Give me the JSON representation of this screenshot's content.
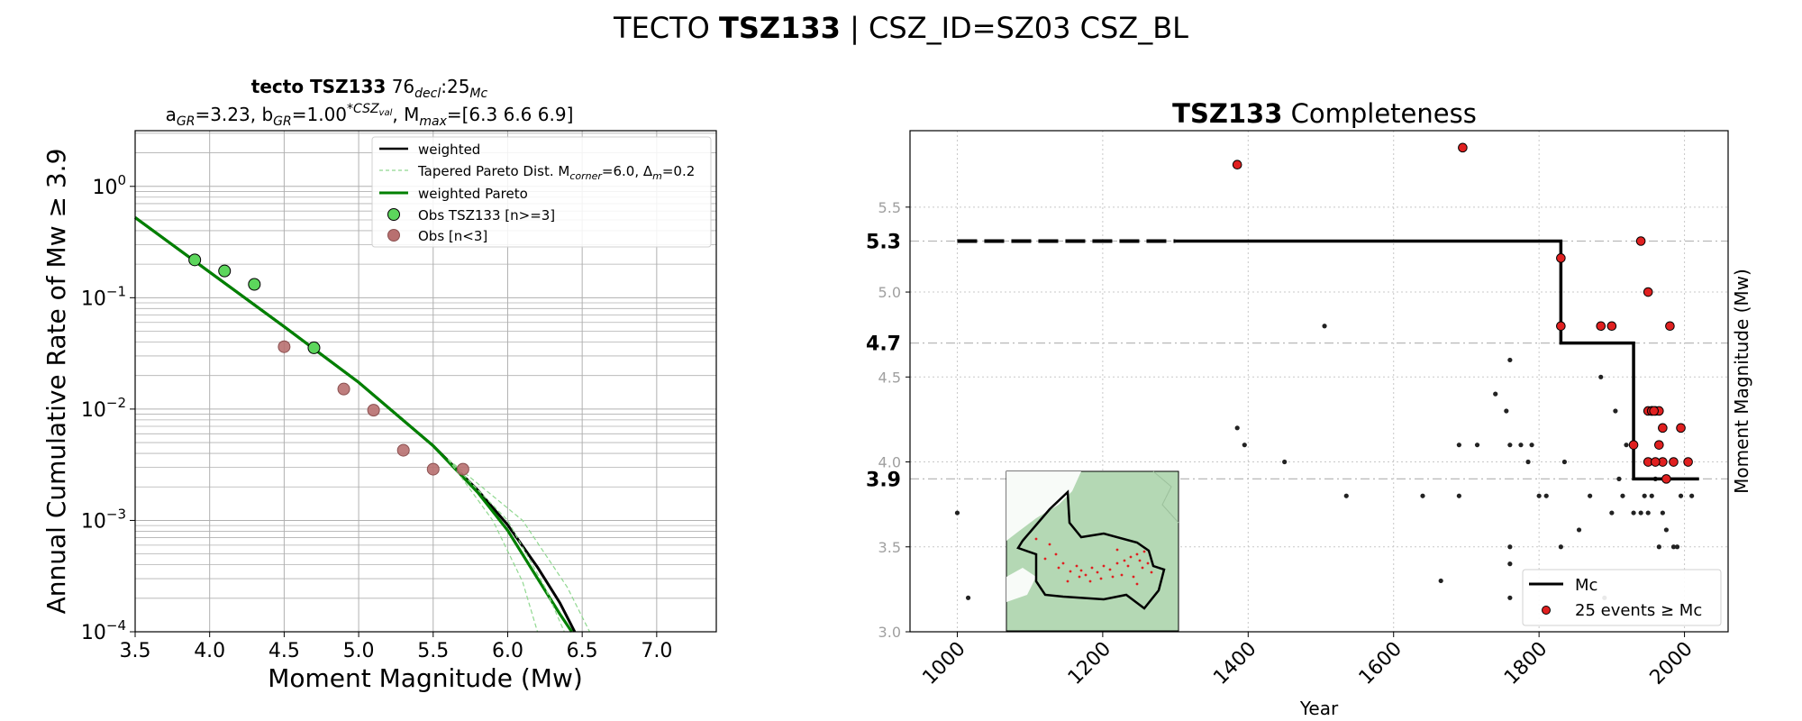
{
  "figure": {
    "title_prefix": "TECTO ",
    "title_bold": "TSZ133",
    "title_suffix": " | CSZ_ID=SZ03 CSZ_BL"
  },
  "chart_data": [
    {
      "type": "line",
      "panel": "recurrence",
      "title_bold": "tecto TSZ133",
      "title_rest": "76",
      "title_sub1": "decl",
      "title_mid": ":25",
      "title_sub2": "Mc",
      "subtitle": {
        "a_label": "a",
        "a_sub": "GR",
        "a_value": "=3.23,  b",
        "b_sub": "GR",
        "b_value": "=1.00",
        "b_sup": "*CSZ",
        "b_sup_sub": "val",
        "mmax_text": ", M",
        "mmax_sub": "max",
        "mmax_value": "=[6.3 6.6 6.9]"
      },
      "xlabel": "Moment Magnitude (Mw)",
      "ylabel": "Annual Cumulative Rate of Mw  ≥  3.9",
      "xlim": [
        3.5,
        7.4
      ],
      "ylim_log10": [
        -4,
        0.5
      ],
      "y_scale": "log",
      "grid": true,
      "x_ticks": [
        "3.5",
        "4.0",
        "4.5",
        "5.0",
        "5.5",
        "6.0",
        "6.5",
        "7.0"
      ],
      "y_ticks": [
        {
          "base": "10",
          "exp": "0",
          "log": 0
        },
        {
          "base": "10",
          "exp": "−1",
          "log": -1
        },
        {
          "base": "10",
          "exp": "−2",
          "log": -2
        },
        {
          "base": "10",
          "exp": "−3",
          "log": -3
        },
        {
          "base": "10",
          "exp": "−4",
          "log": -4
        }
      ],
      "legend": {
        "placement": "top-right",
        "weighted": "weighted",
        "tapered": "Tapered Pareto Dist. M",
        "tapered_sub1": "corner",
        "tapered_mid": "=6.0, Δ",
        "tapered_sub2": "m",
        "tapered_end": "=0.2",
        "weighted_pareto": "weighted Pareto",
        "obs_green": "Obs TSZ133 [n>=3]",
        "obs_brown": "Obs [n<3]"
      },
      "colors": {
        "weighted": "#000000",
        "pareto": "#008000",
        "tapered": "#90d890",
        "obs_green": "#5cd65c",
        "obs_brown": "#b87070"
      },
      "series": [
        {
          "name": "weighted",
          "x": [
            3.5,
            4.0,
            4.5,
            5.0,
            5.5,
            5.8,
            6.0,
            6.2,
            6.35,
            6.45
          ],
          "log10y": [
            -0.28,
            -0.77,
            -1.26,
            -1.76,
            -2.33,
            -2.73,
            -3.04,
            -3.42,
            -3.74,
            -4.0
          ]
        },
        {
          "name": "weighted Pareto",
          "x": [
            3.5,
            4.0,
            4.5,
            5.0,
            5.5,
            5.8,
            6.0,
            6.2,
            6.35,
            6.43
          ],
          "log10y": [
            -0.28,
            -0.77,
            -1.26,
            -1.76,
            -2.33,
            -2.75,
            -3.09,
            -3.52,
            -3.84,
            -4.0
          ]
        },
        {
          "name": "Tapered Pareto Dist. Mcorner=6.0, Δm=0.2 (1)",
          "x": [
            5.6,
            5.9,
            6.1,
            6.2
          ],
          "log10y": [
            -2.45,
            -3.0,
            -3.55,
            -4.0
          ]
        },
        {
          "name": "Tapered Pareto Dist. Mcorner=6.0, Δm=0.2 (2)",
          "x": [
            5.6,
            6.0,
            6.25,
            6.38
          ],
          "log10y": [
            -2.45,
            -3.0,
            -3.6,
            -4.0
          ]
        },
        {
          "name": "Tapered Pareto Dist. Mcorner=6.0, Δm=0.2 (3)",
          "x": [
            5.6,
            6.1,
            6.4,
            6.55
          ],
          "log10y": [
            -2.45,
            -3.0,
            -3.6,
            -4.0
          ]
        }
      ],
      "observations_green": {
        "x": [
          3.9,
          4.1,
          4.3,
          4.7
        ],
        "log10y": [
          -0.66,
          -0.76,
          -0.88,
          -1.45
        ]
      },
      "observations_brown": {
        "x": [
          4.5,
          4.9,
          5.1,
          5.3,
          5.5,
          5.7
        ],
        "log10y": [
          -1.44,
          -1.82,
          -2.01,
          -2.37,
          -2.54,
          -2.54
        ]
      }
    },
    {
      "type": "scatter",
      "panel": "completeness",
      "title_bold": "TSZ133",
      "title_rest": " Completeness",
      "xlabel": "Year",
      "ylabel": "Moment Magnitude (Mw)",
      "xlim": [
        935,
        2060
      ],
      "ylim": [
        3.0,
        5.95
      ],
      "grid": true,
      "x_ticks": [
        "1000",
        "1200",
        "1400",
        "1600",
        "1800",
        "2000"
      ],
      "y_ticks_minor": [
        "3.0",
        "3.5",
        "4.0",
        "4.5",
        "5.0",
        "5.5"
      ],
      "y_ticks_major": [
        "3.9",
        "4.7",
        "5.3"
      ],
      "legend": {
        "placement": "bottom-right",
        "mc": "Mc",
        "events": "25 events  ≥  Mc"
      },
      "colors": {
        "events": "#e02020",
        "small": "#222222",
        "mc": "#000000"
      },
      "mc_step": {
        "dashed": {
          "x": [
            1000,
            1300
          ],
          "y": [
            5.3,
            5.3
          ]
        },
        "solid": {
          "x": [
            1300,
            1830,
            1830,
            1930,
            1930,
            2020
          ],
          "y": [
            5.3,
            5.3,
            4.7,
            4.7,
            3.9,
            3.9
          ]
        }
      },
      "events_red": {
        "x": [
          1385,
          1695,
          1830,
          1830,
          1885,
          1900,
          1940,
          1950,
          1955,
          1960,
          1965,
          1970,
          1970,
          1975,
          1980,
          1985,
          1995,
          2005,
          1930,
          1950,
          1950,
          1960,
          1965,
          1955,
          1958
        ],
        "y": [
          5.75,
          5.85,
          5.2,
          4.8,
          4.8,
          4.8,
          5.3,
          4.3,
          4.3,
          4.3,
          4.1,
          4.2,
          4.0,
          3.9,
          4.8,
          4.0,
          4.2,
          4.0,
          4.1,
          4.0,
          5.0,
          4.0,
          4.3,
          4.3,
          4.3
        ]
      },
      "events_small": {
        "x": [
          1000,
          1015,
          1385,
          1395,
          1450,
          1505,
          1535,
          1640,
          1665,
          1690,
          1690,
          1715,
          1740,
          1755,
          1760,
          1760,
          1760,
          1760,
          1760,
          1775,
          1785,
          1790,
          1800,
          1810,
          1830,
          1835,
          1855,
          1870,
          1885,
          1890,
          1900,
          1905,
          1910,
          1915,
          1920,
          1930,
          1940,
          1945,
          1950,
          1955,
          1960,
          1965,
          1970,
          1975,
          1985,
          1990,
          1995,
          2010
        ],
        "y": [
          3.7,
          3.2,
          4.2,
          4.1,
          4.0,
          4.8,
          3.8,
          3.8,
          3.3,
          3.8,
          4.1,
          4.1,
          4.4,
          4.3,
          4.6,
          4.1,
          3.5,
          3.4,
          3.2,
          4.1,
          4.0,
          4.1,
          3.8,
          3.8,
          3.5,
          4.0,
          3.6,
          3.8,
          4.5,
          3.2,
          3.7,
          4.3,
          3.9,
          3.8,
          4.1,
          3.7,
          3.7,
          3.8,
          3.7,
          3.8,
          3.9,
          3.5,
          3.7,
          3.6,
          3.5,
          3.5,
          3.8,
          3.8
        ]
      },
      "inset_map": {
        "placement": "bottom-left",
        "description_hidden": true
      }
    }
  ]
}
